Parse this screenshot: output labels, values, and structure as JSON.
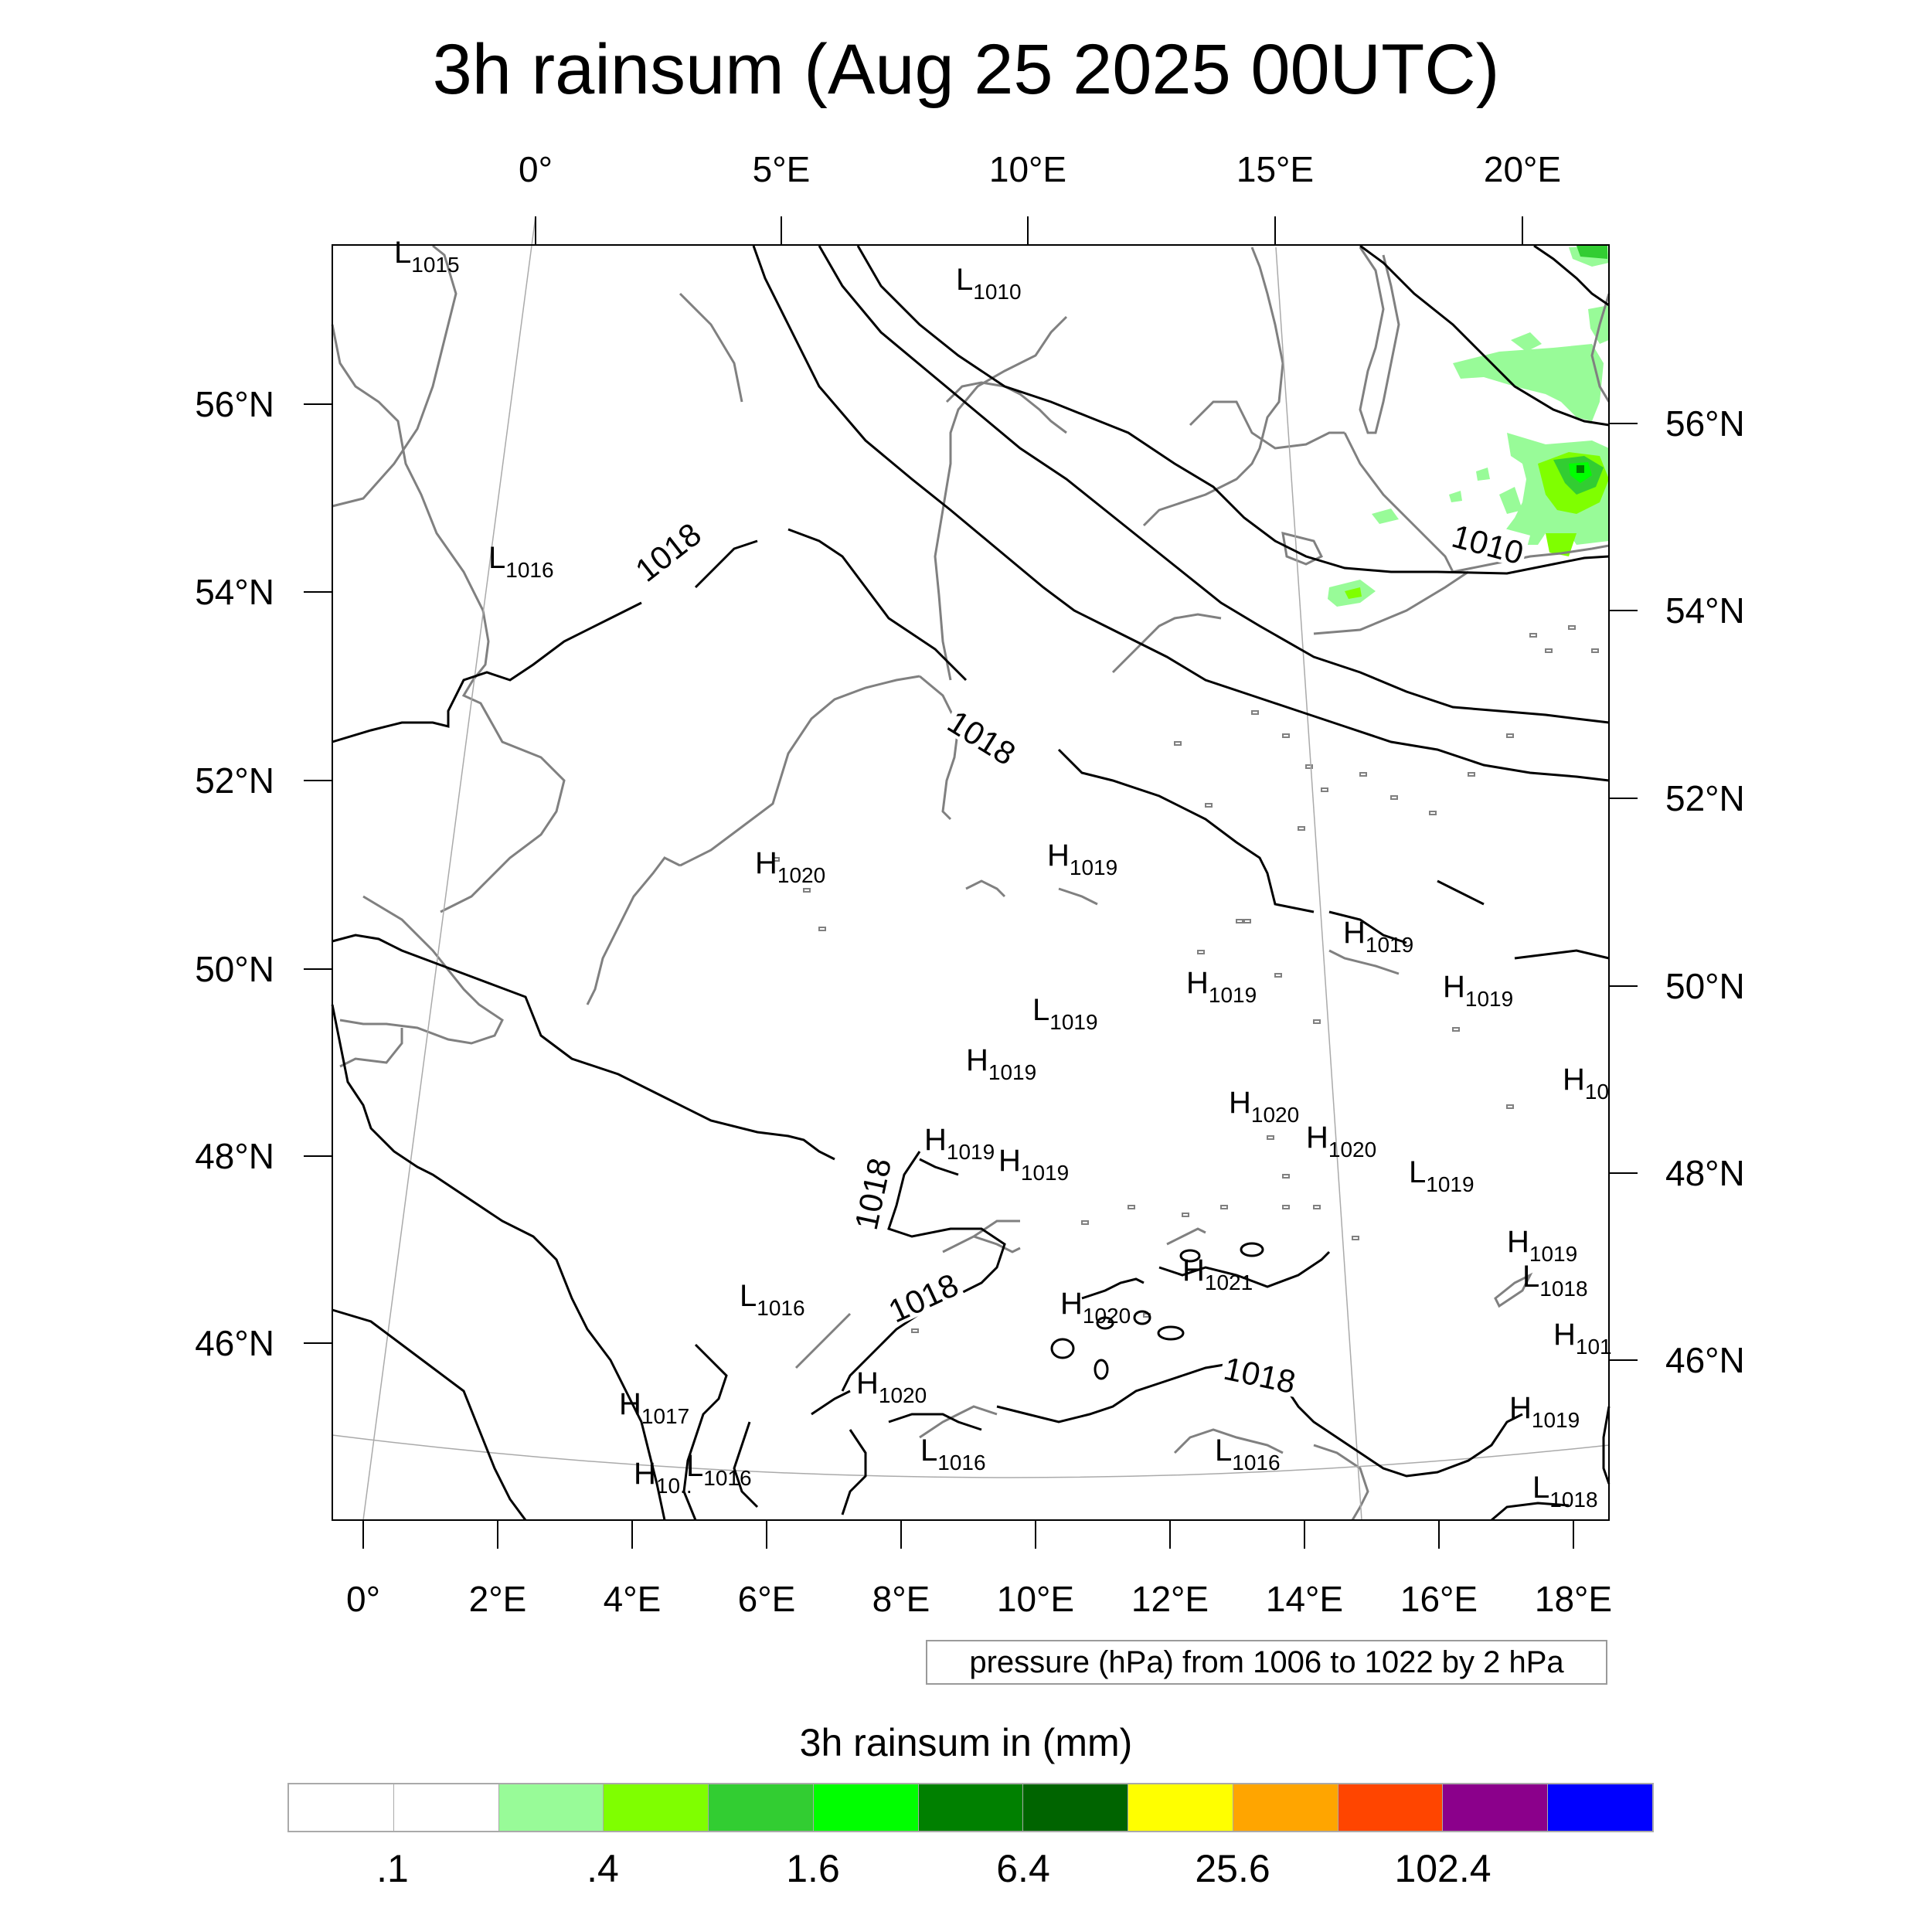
{
  "title": "3h rainsum (Aug 25 2025 00UTC)",
  "map": {
    "top_lon_labels": [
      "0°",
      "5°E",
      "10°E",
      "15°E",
      "20°E"
    ],
    "bottom_lon_labels": [
      "0°",
      "2°E",
      "4°E",
      "6°E",
      "8°E",
      "10°E",
      "12°E",
      "14°E",
      "16°E",
      "18°E"
    ],
    "left_lat_labels": [
      "56°N",
      "54°N",
      "52°N",
      "50°N",
      "48°N",
      "46°N"
    ],
    "right_lat_labels": [
      "56°N",
      "54°N",
      "52°N",
      "50°N",
      "48°N",
      "46°N"
    ],
    "contour_labels": [
      "1010",
      "1018",
      "1018",
      "1018",
      "1018",
      "1018"
    ],
    "pressure_centers": [
      {
        "type": "L",
        "value": "1015"
      },
      {
        "type": "L",
        "value": "1010"
      },
      {
        "type": "L",
        "value": "1016"
      },
      {
        "type": "H",
        "value": "1020"
      },
      {
        "type": "H",
        "value": "1019"
      },
      {
        "type": "H",
        "value": "1019"
      },
      {
        "type": "H",
        "value": "1019"
      },
      {
        "type": "H",
        "value": "1019"
      },
      {
        "type": "L",
        "value": "1019"
      },
      {
        "type": "H",
        "value": "1019"
      },
      {
        "type": "H",
        "value": "10"
      },
      {
        "type": "H",
        "value": "1020"
      },
      {
        "type": "H",
        "value": "1020"
      },
      {
        "type": "H",
        "value": "1019"
      },
      {
        "type": "H",
        "value": "1019"
      },
      {
        "type": "L",
        "value": "1019"
      },
      {
        "type": "H",
        "value": "1019"
      },
      {
        "type": "L",
        "value": "1018"
      },
      {
        "type": "H",
        "value": "1021"
      },
      {
        "type": "L",
        "value": "1016"
      },
      {
        "type": "H",
        "value": "1020"
      },
      {
        "type": "H",
        "value": "101"
      },
      {
        "type": "H",
        "value": "1017"
      },
      {
        "type": "H",
        "value": "1020"
      },
      {
        "type": "H",
        "value": "1019"
      },
      {
        "type": "L",
        "value": "1016"
      },
      {
        "type": "H",
        "value": "10.."
      },
      {
        "type": "L",
        "value": "1016"
      },
      {
        "type": "L",
        "value": "1016"
      },
      {
        "type": "L",
        "value": "1018"
      }
    ],
    "pressure_note": "pressure (hPa) from 1006 to 1022 by 2 hPa",
    "coastline_color": "#808080",
    "isobar_color": "#000000",
    "rain_colors": [
      "#98fb98",
      "#7fff00",
      "#32cd32",
      "#00ff00",
      "#008000"
    ]
  },
  "legend": {
    "title": "3h rainsum in (mm)",
    "colors": [
      "#ffffff",
      "#ffffff",
      "#98fb98",
      "#7fff00",
      "#32cd32",
      "#00ff00",
      "#008000",
      "#006400",
      "#ffff00",
      "#ffa500",
      "#ff4500",
      "#8b008b",
      "#0000ff"
    ],
    "labels": [
      ".1",
      ".4",
      "1.6",
      "6.4",
      "25.6",
      "102.4"
    ]
  }
}
